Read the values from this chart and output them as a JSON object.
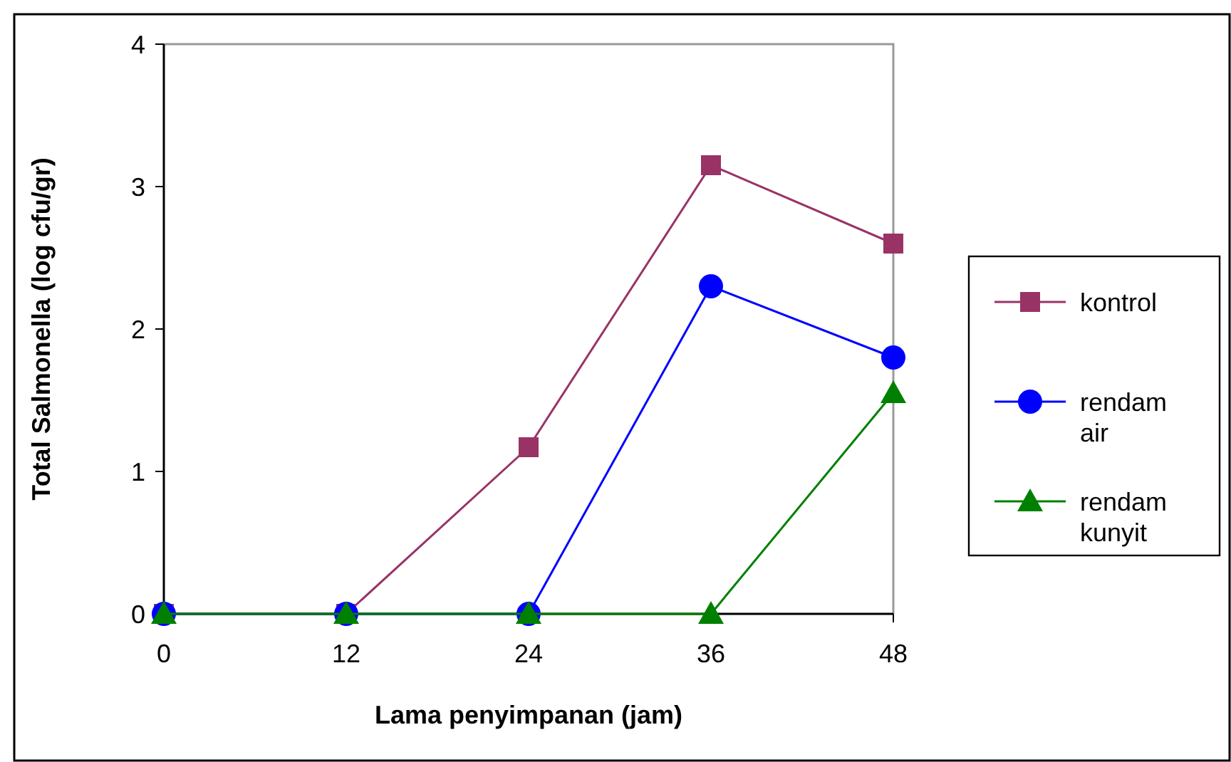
{
  "chart_data": {
    "type": "line",
    "xlabel": "Lama penyimpanan (jam)",
    "ylabel": "Total Salmonella (log cfu/gr)",
    "x": [
      0,
      12,
      24,
      36,
      48
    ],
    "xlim": [
      0,
      48
    ],
    "xticks": [
      0,
      12,
      24,
      36,
      48
    ],
    "ylim": [
      0,
      4
    ],
    "yticks": [
      0,
      1,
      2,
      3,
      4
    ],
    "grid": false,
    "legend": "right",
    "series": [
      {
        "name": "kontrol",
        "color": "#993366",
        "marker": "square",
        "values": [
          0,
          0,
          1.17,
          3.15,
          2.6
        ]
      },
      {
        "name": "rendam air",
        "color": "#0000ff",
        "marker": "circle",
        "values": [
          0,
          0,
          0,
          2.3,
          1.8
        ]
      },
      {
        "name": "rendam kunyit",
        "color": "#008000",
        "marker": "triangle",
        "values": [
          0,
          0,
          0,
          0,
          1.55
        ]
      }
    ]
  }
}
